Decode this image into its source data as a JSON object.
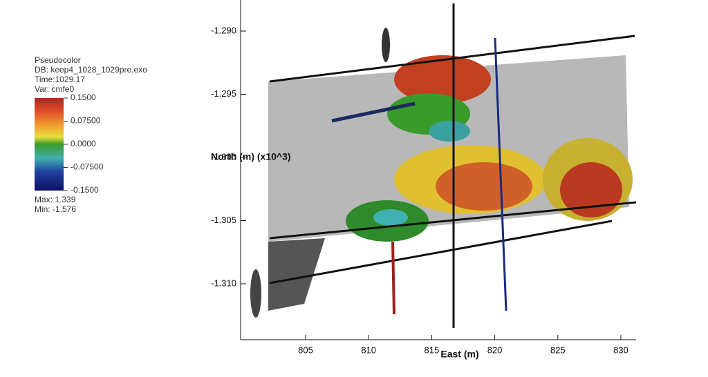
{
  "legend": {
    "plot": "Pseudocolor",
    "db": "DB: keep4_1028_1029pre.exo",
    "time": "Time:1029.17",
    "var": "Var: cmfe0",
    "ticks": [
      "0.1500",
      "0.07500",
      "0.0000",
      "-0.07500",
      "-0.1500"
    ],
    "max": "Max: 1.339",
    "min": "Min: -1.576"
  },
  "y_axis": {
    "title": "North (m) (x10^3)",
    "ticks": [
      "-1.290",
      "-1.295",
      "-1.300",
      "-1.305",
      "-1.310"
    ]
  },
  "x_axis": {
    "title": "East (m)",
    "ticks": [
      "805",
      "810",
      "815",
      "820",
      "825",
      "830"
    ]
  }
}
